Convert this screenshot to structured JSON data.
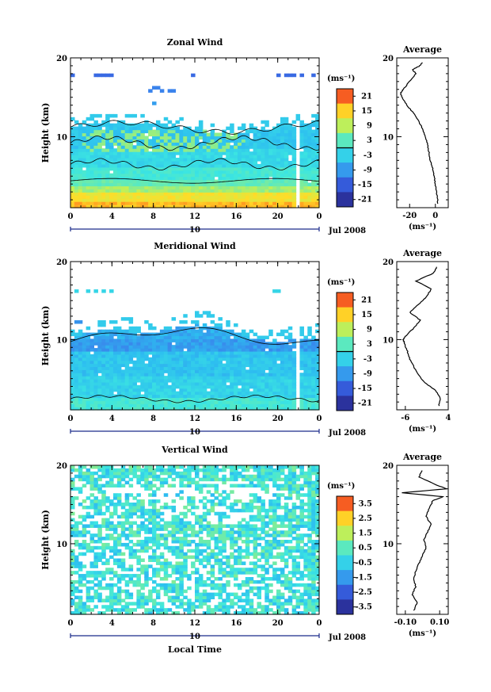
{
  "figure": {
    "x_tick_labels": [
      "0",
      "4",
      "8",
      "12",
      "16",
      "20",
      "0"
    ],
    "date_day": "10",
    "date_month_year": "Jul 2008",
    "xlabel": "Local Time",
    "ylabel": "Height (km)",
    "y_tick_labels": [
      "10",
      "20"
    ],
    "colorbar_unit": "(ms⁻¹)",
    "profile_unit": "(ms⁻¹)",
    "profile_title": "Average"
  },
  "chart_data": [
    {
      "type": "heatmap",
      "title": "Zonal Wind",
      "x": {
        "label": "Local Time",
        "range_hours": [
          0,
          24
        ],
        "ticks": [
          0,
          4,
          8,
          12,
          16,
          20,
          24
        ]
      },
      "y": {
        "label": "Height (km)",
        "range_km": [
          1,
          20
        ],
        "ticks": [
          10,
          20
        ]
      },
      "colorbar": {
        "unit": "(ms⁻¹)",
        "range": [
          -24,
          24
        ],
        "tick_labels": [
          "21",
          "15",
          "9",
          "3",
          "-3",
          "-9",
          "-15",
          "-21"
        ],
        "zero_line": true
      },
      "profile": {
        "title": "Average",
        "xlabel": "(ms⁻¹)",
        "xrange": [
          -30,
          10
        ],
        "tick_labels": [
          "-20",
          "0"
        ],
        "heights_km": [
          1.5,
          3,
          4,
          5,
          6,
          7,
          8,
          9,
          10,
          11,
          12,
          13,
          14,
          15,
          15.5,
          16,
          17,
          18,
          18.5,
          19,
          19.5
        ],
        "values": [
          2,
          1,
          0,
          -1,
          -2,
          -4,
          -5,
          -6,
          -8,
          -10,
          -13,
          -17,
          -22,
          -26,
          -27,
          -25,
          -20,
          -15,
          -18,
          -12,
          -10
        ]
      }
    },
    {
      "type": "heatmap",
      "title": "Meridional Wind",
      "x": {
        "label": "Local Time",
        "range_hours": [
          0,
          24
        ],
        "ticks": [
          0,
          4,
          8,
          12,
          16,
          20,
          24
        ]
      },
      "y": {
        "label": "Height (km)",
        "range_km": [
          1,
          20
        ],
        "ticks": [
          10,
          20
        ]
      },
      "colorbar": {
        "unit": "(ms⁻¹)",
        "range": [
          -24,
          24
        ],
        "tick_labels": [
          "21",
          "15",
          "9",
          "3",
          "-3",
          "-9",
          "-15",
          "-21"
        ],
        "zero_line": true
      },
      "profile": {
        "title": "Average",
        "xlabel": "(ms⁻¹)",
        "xrange": [
          -8,
          4
        ],
        "tick_labels": [
          "-6",
          "4"
        ],
        "heights_km": [
          1.5,
          2.5,
          3.5,
          4.5,
          5.5,
          6.5,
          7.5,
          8.5,
          9.5,
          10,
          10.5,
          11.5,
          12.5,
          13.5,
          14.5,
          15.5,
          16.5,
          17.5,
          18.5,
          19.5
        ],
        "values": [
          1.8,
          2.2,
          1.0,
          -1.5,
          -3.0,
          -4.0,
          -5.0,
          -5.5,
          -6.2,
          -6.5,
          -5.8,
          -4.0,
          -2.5,
          -5.0,
          -3.0,
          -1.0,
          0.0,
          -3.5,
          0.5,
          1.5
        ]
      }
    },
    {
      "type": "heatmap",
      "title": "Vertical Wind",
      "x": {
        "label": "Local Time",
        "range_hours": [
          0,
          24
        ],
        "ticks": [
          0,
          4,
          8,
          12,
          16,
          20,
          24
        ]
      },
      "y": {
        "label": "Height (km)",
        "range_km": [
          1,
          20
        ],
        "ticks": [
          10,
          20
        ]
      },
      "colorbar": {
        "unit": "(ms⁻¹)",
        "range": [
          -4,
          4
        ],
        "tick_labels": [
          "3.5",
          "2.5",
          "1.5",
          "0.5",
          "-0.5",
          "-1.5",
          "-2.5",
          "-3.5"
        ],
        "zero_line": false
      },
      "profile": {
        "title": "Average",
        "xlabel": "(ms⁻¹)",
        "xrange": [
          -0.15,
          0.15
        ],
        "tick_labels": [
          "-0.10",
          "0.10"
        ],
        "heights_km": [
          1.5,
          2.5,
          3.5,
          4.5,
          5.5,
          6.5,
          7.5,
          8.5,
          9.5,
          10.5,
          11.5,
          12.5,
          13.5,
          14.5,
          15.5,
          16.0,
          16.5,
          17.0,
          17.5,
          18.5,
          19.5
        ],
        "values": [
          -0.05,
          -0.03,
          -0.06,
          -0.04,
          -0.05,
          -0.04,
          -0.02,
          0.0,
          0.02,
          0.01,
          0.03,
          0.05,
          0.02,
          0.04,
          0.06,
          0.12,
          -0.12,
          0.14,
          0.08,
          -0.02,
          0.0
        ]
      }
    }
  ]
}
